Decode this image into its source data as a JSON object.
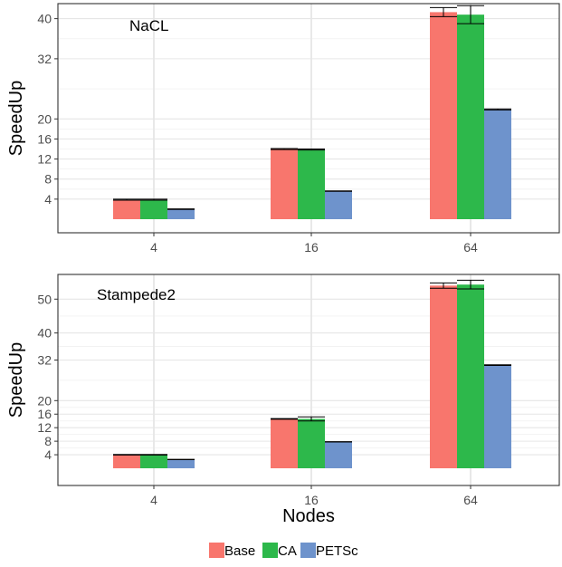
{
  "chart_data": [
    {
      "type": "bar",
      "annotation": "NaCL",
      "categories": [
        "4",
        "16",
        "64"
      ],
      "xlabel": "",
      "ylabel": "SpeedUp",
      "yticks": [
        4,
        8,
        12,
        16,
        20,
        32,
        40
      ],
      "ylim": [
        0,
        43
      ],
      "series": [
        {
          "name": "Base",
          "color": "#F8766D",
          "values": [
            3.9,
            14.0,
            41.3
          ],
          "errors": [
            0.1,
            0.1,
            0.9
          ]
        },
        {
          "name": "CA",
          "color": "#2DB84B",
          "values": [
            3.9,
            13.9,
            40.8
          ],
          "errors": [
            0.1,
            0.1,
            1.8
          ]
        },
        {
          "name": "PETSc",
          "color": "#6E93CC",
          "values": [
            2.0,
            5.6,
            21.9
          ],
          "errors": [
            0.05,
            0.05,
            0.1
          ]
        }
      ]
    },
    {
      "type": "bar",
      "annotation": "Stampede2",
      "categories": [
        "4",
        "16",
        "64"
      ],
      "xlabel": "Nodes",
      "ylabel": "SpeedUp",
      "yticks": [
        4,
        8,
        12,
        16,
        20,
        32,
        40,
        50
      ],
      "ylim": [
        0,
        57.3
      ],
      "series": [
        {
          "name": "Base",
          "color": "#F8766D",
          "values": [
            4.0,
            14.6,
            54.0
          ],
          "errors": [
            0.1,
            0.1,
            0.8
          ]
        },
        {
          "name": "CA",
          "color": "#2DB84B",
          "values": [
            4.0,
            14.6,
            54.3
          ],
          "errors": [
            0.1,
            0.6,
            1.3
          ]
        },
        {
          "name": "PETSc",
          "color": "#6E93CC",
          "values": [
            2.6,
            7.8,
            30.5
          ],
          "errors": [
            0.05,
            0.05,
            0.1
          ]
        }
      ]
    }
  ],
  "legend": {
    "position": "bottom",
    "entries": [
      {
        "label": "Base",
        "color": "#F8766D"
      },
      {
        "label": "CA",
        "color": "#2DB84B"
      },
      {
        "label": "PETSc",
        "color": "#6E93CC"
      }
    ]
  },
  "grid": true
}
